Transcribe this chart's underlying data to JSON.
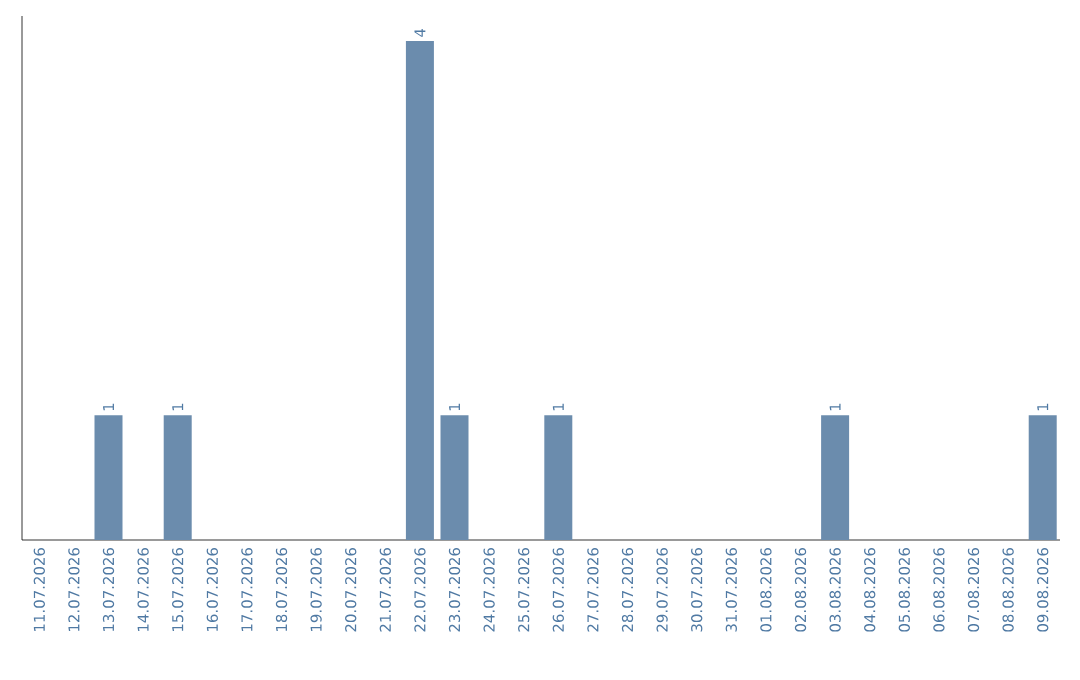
{
  "chart_data": {
    "type": "bar",
    "categories": [
      "11.07.2026",
      "12.07.2026",
      "13.07.2026",
      "14.07.2026",
      "15.07.2026",
      "16.07.2026",
      "17.07.2026",
      "18.07.2026",
      "19.07.2026",
      "20.07.2026",
      "21.07.2026",
      "22.07.2026",
      "23.07.2026",
      "24.07.2026",
      "25.07.2026",
      "26.07.2026",
      "27.07.2026",
      "28.07.2026",
      "29.07.2026",
      "30.07.2026",
      "31.07.2026",
      "01.08.2026",
      "02.08.2026",
      "03.08.2026",
      "04.08.2026",
      "05.08.2026",
      "06.08.2026",
      "07.08.2026",
      "08.08.2026",
      "09.08.2026"
    ],
    "values": [
      0,
      0,
      1,
      0,
      1,
      0,
      0,
      0,
      0,
      0,
      0,
      4,
      1,
      0,
      0,
      1,
      0,
      0,
      0,
      0,
      0,
      0,
      0,
      1,
      0,
      0,
      0,
      0,
      0,
      1
    ],
    "value_labels": [
      null,
      null,
      "1",
      null,
      "1",
      null,
      null,
      null,
      null,
      null,
      null,
      "4",
      "1",
      null,
      null,
      "1",
      null,
      null,
      null,
      null,
      null,
      null,
      null,
      "1",
      null,
      null,
      null,
      null,
      null,
      "1"
    ],
    "color": "#6b8cad",
    "ylim": [
      0,
      4.2
    ],
    "tick_labels": "x"
  }
}
